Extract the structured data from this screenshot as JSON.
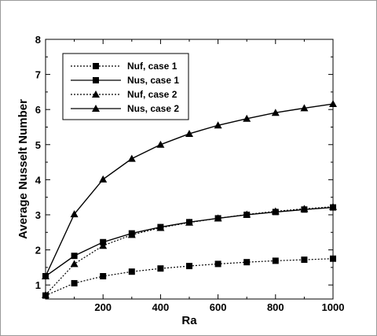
{
  "chart_data": {
    "type": "line",
    "xlabel": "Ra",
    "ylabel": "Average Nusselt Number",
    "xlim": [
      0,
      1000
    ],
    "ylim": [
      0.6,
      8
    ],
    "x_ticks": [
      200,
      400,
      600,
      800,
      1000
    ],
    "y_ticks": [
      1,
      2,
      3,
      4,
      5,
      6,
      7,
      8
    ],
    "grid": false,
    "legend_position": "top-left",
    "series": [
      {
        "name": "Nuf, case 1",
        "marker": "square",
        "line_style": "dotted",
        "x": [
          0,
          100,
          200,
          300,
          400,
          500,
          600,
          700,
          800,
          900,
          1000
        ],
        "y": [
          0.7,
          1.05,
          1.25,
          1.38,
          1.47,
          1.54,
          1.6,
          1.65,
          1.69,
          1.72,
          1.75
        ]
      },
      {
        "name": "Nus, case 1",
        "marker": "square",
        "line_style": "solid",
        "x": [
          0,
          100,
          200,
          300,
          400,
          500,
          600,
          700,
          800,
          900,
          1000
        ],
        "y": [
          1.25,
          1.83,
          2.22,
          2.47,
          2.65,
          2.79,
          2.9,
          3.0,
          3.08,
          3.15,
          3.21
        ]
      },
      {
        "name": "Nuf, case 2",
        "marker": "triangle",
        "line_style": "dotted",
        "x": [
          0,
          100,
          200,
          300,
          400,
          500,
          600,
          700,
          800,
          900,
          1000
        ],
        "y": [
          0.72,
          1.6,
          2.12,
          2.43,
          2.63,
          2.78,
          2.9,
          3.01,
          3.1,
          3.17,
          3.23
        ]
      },
      {
        "name": "Nus, case 2",
        "marker": "triangle",
        "line_style": "solid",
        "x": [
          0,
          100,
          200,
          300,
          400,
          500,
          600,
          700,
          800,
          900,
          1000
        ],
        "y": [
          1.25,
          3.02,
          4.01,
          4.6,
          5.0,
          5.31,
          5.55,
          5.74,
          5.91,
          6.04,
          6.16
        ]
      }
    ]
  }
}
